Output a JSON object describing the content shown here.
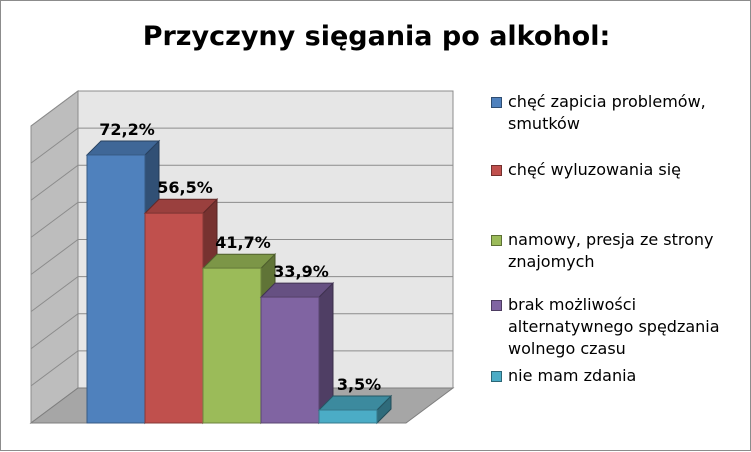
{
  "chart_data": {
    "type": "bar",
    "title": "Przyczyny sięgania po alkohol:",
    "xlabel": "",
    "ylabel": "",
    "ylim": [
      0,
      80
    ],
    "grid": true,
    "legend_position": "right",
    "categories": [
      "chęć zapicia problemów, smutków",
      "chęć wyluzowania się",
      "namowy, presja ze strony znajomych",
      "brak możliwości alternatywnego spędzania wolnego czasu",
      "nie mam zdania"
    ],
    "values": [
      72.2,
      56.5,
      41.7,
      33.9,
      3.5
    ],
    "data_labels": [
      "72,2%",
      "56,5%",
      "41,7%",
      "33,9%",
      "3,5%"
    ],
    "colors": [
      "#4f81bd",
      "#c0504d",
      "#9bbb59",
      "#8064a2",
      "#4bacc6"
    ]
  }
}
